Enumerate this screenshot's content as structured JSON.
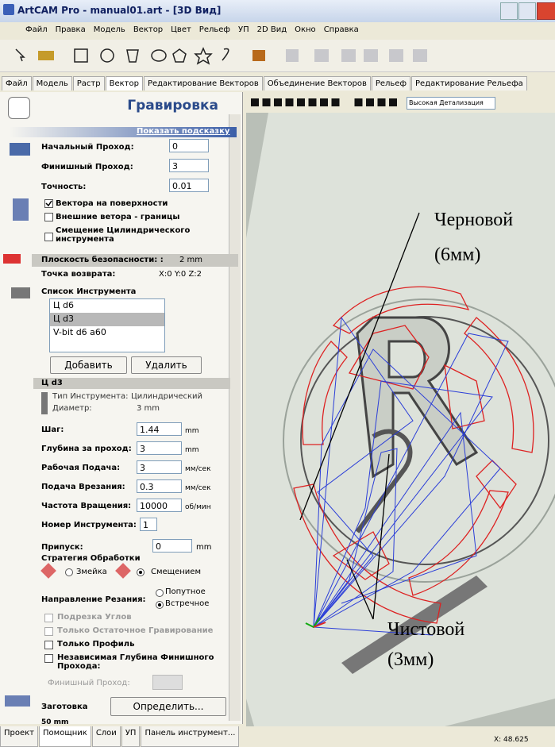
{
  "window": {
    "title": "ArtCAM Pro - manual01.art - [3D Вид]"
  },
  "menu": [
    "Файл",
    "Правка",
    "Модель",
    "Вектор",
    "Цвет",
    "Рельеф",
    "УП",
    "2D Вид",
    "Окно",
    "Справка"
  ],
  "tabs": [
    "Файл",
    "Модель",
    "Растр",
    "Вектор",
    "Редактирование Векторов",
    "Объединение Векторов",
    "Рельеф",
    "Редактирование Рельефа"
  ],
  "view_toolbar": {
    "detail": "Высокая Детализация"
  },
  "panel": {
    "title": "Гравировка",
    "hint": "Показать подсказку",
    "passes": [
      {
        "label": "Начальный Проход:",
        "value": "0"
      },
      {
        "label": "Финишный Проход:",
        "value": "3"
      },
      {
        "label": "Точность:",
        "value": "0.01"
      }
    ],
    "options": [
      "Вектора на поверхности",
      "Внешние ветора - границы",
      "Смещение Цилиндрического инструмента"
    ],
    "safe_plane": {
      "label": "Плоскость безопасности: :",
      "value": "2 mm"
    },
    "home": {
      "label": "Точка возврата:",
      "value": "X:0 Y:0 Z:2"
    },
    "tool_list": {
      "label": "Список Инструмента",
      "items": [
        "Ц d6",
        "Ц d3",
        "V-bit d6 a60"
      ],
      "add": "Добавить",
      "remove": "Удалить"
    },
    "tool": {
      "name": "Ц d3",
      "type_label": "Тип Инструмента:",
      "type": "Цилиндрический",
      "diameter_label": "Диаметр:",
      "diameter": "3 mm",
      "params": [
        {
          "label": "Шаг:",
          "value": "1.44",
          "unit": "mm"
        },
        {
          "label": "Глубина за проход:",
          "value": "3",
          "unit": "mm"
        },
        {
          "label": "Рабочая Подача:",
          "value": "3",
          "unit": "мм/сек"
        },
        {
          "label": "Подача Врезания:",
          "value": "0.3",
          "unit": "мм/сек"
        },
        {
          "label": "Частота Вращения:",
          "value": "10000",
          "unit": "об/мин"
        },
        {
          "label": "Номер Инструмента:",
          "value": "1"
        }
      ]
    },
    "allowance": {
      "label": "Припуск:",
      "value": "0",
      "unit": "mm"
    },
    "strategy": {
      "label": "Стратегия Обработки",
      "options": [
        "Змейка",
        "Смещением"
      ]
    },
    "direction": {
      "label": "Направление Резания:",
      "options": [
        "Попутное",
        "Встречное"
      ]
    },
    "flags": [
      "Подрезка Углов",
      "Только Остаточное Гравирование",
      "Только Профиль",
      "Независимая Глубина Финишного Прохода:"
    ],
    "finish_pass": "Финишный Проход:",
    "stock": {
      "label": "Заготовка",
      "button": "Определить...",
      "value": "50 mm"
    }
  },
  "bottom_tabs": [
    "Проект",
    "Помощник",
    "Слои",
    "УП",
    "Панель инструмент..."
  ],
  "status": "X: 48.625",
  "annotations": {
    "rough": [
      "Черновой",
      "(6мм)"
    ],
    "finish": [
      "Чистовой",
      "(3мм)"
    ]
  }
}
